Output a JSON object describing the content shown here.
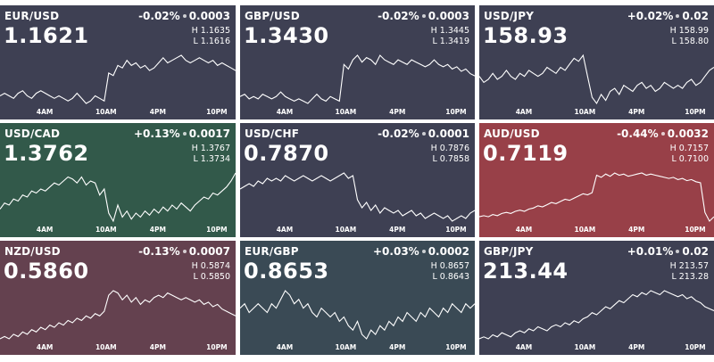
{
  "colors": {
    "neutral": "#3e4053",
    "green": "#32594a",
    "red": "#984048",
    "mauve": "#64414f",
    "teal": "#3a4a55",
    "line": "#ffffff"
  },
  "axis_labels": [
    "4AM",
    "10AM",
    "4PM",
    "10PM"
  ],
  "tiles": [
    {
      "pair": "EUR/USD",
      "change_pct": "-0.02%",
      "change_abs": "0.0003",
      "price": "1.1621",
      "high_label": "H",
      "high": "1.1635",
      "low_label": "L",
      "low": "1.1616",
      "color": "neutral",
      "chart_data": {
        "type": "line",
        "x_ticks": [
          "4AM",
          "10AM",
          "4PM",
          "10PM"
        ],
        "values": [
          1.1619,
          1.162,
          1.1619,
          1.1618,
          1.162,
          1.1621,
          1.1619,
          1.1618,
          1.162,
          1.1621,
          1.162,
          1.1619,
          1.1618,
          1.1619,
          1.1618,
          1.1617,
          1.1618,
          1.162,
          1.1618,
          1.1616,
          1.1617,
          1.1619,
          1.1618,
          1.1617,
          1.1628,
          1.1627,
          1.1631,
          1.163,
          1.1633,
          1.1631,
          1.1632,
          1.163,
          1.1631,
          1.1629,
          1.163,
          1.1632,
          1.1634,
          1.1632,
          1.1633,
          1.1634,
          1.1635,
          1.1633,
          1.1632,
          1.1633,
          1.1634,
          1.1633,
          1.1632,
          1.1633,
          1.1631,
          1.1632,
          1.1631,
          1.163,
          1.1629
        ]
      }
    },
    {
      "pair": "GBP/USD",
      "change_pct": "-0.02%",
      "change_abs": "0.0003",
      "price": "1.3430",
      "high_label": "H",
      "high": "1.3445",
      "low_label": "L",
      "low": "1.3419",
      "color": "neutral",
      "chart_data": {
        "type": "line",
        "x_ticks": [
          "4AM",
          "10AM",
          "4PM",
          "10PM"
        ],
        "values": [
          1.3422,
          1.3423,
          1.3421,
          1.3422,
          1.3421,
          1.3423,
          1.3422,
          1.3421,
          1.3422,
          1.3424,
          1.3422,
          1.3421,
          1.342,
          1.3421,
          1.342,
          1.3419,
          1.3421,
          1.3423,
          1.3421,
          1.342,
          1.3422,
          1.3421,
          1.342,
          1.3436,
          1.3434,
          1.3438,
          1.344,
          1.3437,
          1.3439,
          1.3438,
          1.3436,
          1.344,
          1.3438,
          1.3437,
          1.3436,
          1.3438,
          1.3437,
          1.3436,
          1.3438,
          1.3437,
          1.3436,
          1.3435,
          1.3436,
          1.3438,
          1.3436,
          1.3435,
          1.3436,
          1.3434,
          1.3435,
          1.3433,
          1.3434,
          1.3432,
          1.3431
        ]
      }
    },
    {
      "pair": "USD/JPY",
      "change_pct": "+0.02%",
      "change_abs": "0.02",
      "price": "158.93",
      "high_label": "H",
      "high": "158.99",
      "low_label": "L",
      "low": "158.80",
      "color": "neutral",
      "chart_data": {
        "type": "line",
        "x_ticks": [
          "4AM",
          "10AM",
          "4PM",
          "10PM"
        ],
        "values": [
          158.9,
          158.88,
          158.89,
          158.91,
          158.89,
          158.9,
          158.92,
          158.9,
          158.89,
          158.91,
          158.9,
          158.92,
          158.91,
          158.9,
          158.91,
          158.93,
          158.92,
          158.91,
          158.93,
          158.92,
          158.94,
          158.96,
          158.95,
          158.97,
          158.9,
          158.83,
          158.81,
          158.84,
          158.82,
          158.85,
          158.86,
          158.84,
          158.87,
          158.86,
          158.85,
          158.87,
          158.88,
          158.86,
          158.87,
          158.85,
          158.86,
          158.88,
          158.87,
          158.86,
          158.87,
          158.86,
          158.88,
          158.89,
          158.87,
          158.88,
          158.9,
          158.92,
          158.93
        ]
      }
    },
    {
      "pair": "USD/CAD",
      "change_pct": "+0.13%",
      "change_abs": "0.0017",
      "price": "1.3762",
      "high_label": "H",
      "high": "1.3767",
      "low_label": "L",
      "low": "1.3734",
      "color": "green",
      "chart_data": {
        "type": "line",
        "x_ticks": [
          "4AM",
          "10AM",
          "4PM",
          "10PM"
        ],
        "values": [
          1.3742,
          1.3745,
          1.3744,
          1.3747,
          1.3746,
          1.3749,
          1.3748,
          1.3751,
          1.375,
          1.3752,
          1.3751,
          1.3753,
          1.3755,
          1.3754,
          1.3756,
          1.3758,
          1.3757,
          1.3755,
          1.3758,
          1.3754,
          1.3756,
          1.3755,
          1.3749,
          1.3752,
          1.374,
          1.3736,
          1.3744,
          1.3738,
          1.3741,
          1.3737,
          1.374,
          1.3738,
          1.3741,
          1.3739,
          1.3742,
          1.374,
          1.3743,
          1.3741,
          1.3744,
          1.3742,
          1.3745,
          1.3743,
          1.3741,
          1.3744,
          1.3746,
          1.3748,
          1.3747,
          1.375,
          1.3749,
          1.3751,
          1.3753,
          1.3756,
          1.376
        ]
      }
    },
    {
      "pair": "USD/CHF",
      "change_pct": "-0.02%",
      "change_abs": "0.0001",
      "price": "0.7870",
      "high_label": "H",
      "high": "0.7876",
      "low_label": "L",
      "low": "0.7858",
      "color": "neutral",
      "chart_data": {
        "type": "line",
        "x_ticks": [
          "4AM",
          "10AM",
          "4PM",
          "10PM"
        ],
        "values": [
          0.787,
          0.7871,
          0.7872,
          0.7871,
          0.7873,
          0.7872,
          0.7874,
          0.7873,
          0.7874,
          0.7873,
          0.7875,
          0.7874,
          0.7873,
          0.7874,
          0.7875,
          0.7874,
          0.7873,
          0.7874,
          0.7875,
          0.7874,
          0.7873,
          0.7874,
          0.7875,
          0.7876,
          0.7874,
          0.7875,
          0.7866,
          0.7863,
          0.7865,
          0.7862,
          0.7864,
          0.7861,
          0.7863,
          0.7862,
          0.7861,
          0.7862,
          0.786,
          0.7861,
          0.7862,
          0.786,
          0.7861,
          0.7859,
          0.786,
          0.7861,
          0.786,
          0.7859,
          0.786,
          0.7858,
          0.7859,
          0.786,
          0.7859,
          0.7861,
          0.7862
        ]
      }
    },
    {
      "pair": "AUD/USD",
      "change_pct": "-0.44%",
      "change_abs": "0.0032",
      "price": "0.7119",
      "high_label": "H",
      "high": "0.7157",
      "low_label": "L",
      "low": "0.7100",
      "color": "red",
      "chart_data": {
        "type": "line",
        "x_ticks": [
          "4AM",
          "10AM",
          "4PM",
          "10PM"
        ],
        "values": [
          0.7108,
          0.7109,
          0.7108,
          0.711,
          0.7109,
          0.7111,
          0.7112,
          0.7111,
          0.7113,
          0.7114,
          0.7113,
          0.7115,
          0.7116,
          0.7118,
          0.7117,
          0.7119,
          0.7121,
          0.712,
          0.7122,
          0.7124,
          0.7123,
          0.7125,
          0.7127,
          0.7129,
          0.7128,
          0.713,
          0.7146,
          0.7144,
          0.7147,
          0.7145,
          0.7148,
          0.7146,
          0.7147,
          0.7145,
          0.7146,
          0.7147,
          0.7148,
          0.7146,
          0.7147,
          0.7146,
          0.7145,
          0.7144,
          0.7143,
          0.7144,
          0.7142,
          0.7143,
          0.7141,
          0.7142,
          0.714,
          0.7139,
          0.7112,
          0.7104,
          0.7108
        ]
      }
    },
    {
      "pair": "NZD/USD",
      "change_pct": "-0.13%",
      "change_abs": "0.0007",
      "price": "0.5860",
      "high_label": "H",
      "high": "0.5874",
      "low_label": "L",
      "low": "0.5850",
      "color": "mauve",
      "chart_data": {
        "type": "line",
        "x_ticks": [
          "4AM",
          "10AM",
          "4PM",
          "10PM"
        ],
        "values": [
          0.5851,
          0.5852,
          0.5851,
          0.5853,
          0.5852,
          0.5854,
          0.5853,
          0.5855,
          0.5854,
          0.5856,
          0.5855,
          0.5857,
          0.5856,
          0.5858,
          0.5857,
          0.5859,
          0.5858,
          0.586,
          0.5859,
          0.5861,
          0.586,
          0.5862,
          0.5861,
          0.5863,
          0.587,
          0.5872,
          0.5871,
          0.5868,
          0.587,
          0.5867,
          0.5869,
          0.5866,
          0.5868,
          0.5867,
          0.5869,
          0.587,
          0.5869,
          0.5871,
          0.587,
          0.5869,
          0.5868,
          0.5869,
          0.5868,
          0.5867,
          0.5868,
          0.5866,
          0.5867,
          0.5865,
          0.5866,
          0.5864,
          0.5863,
          0.5862,
          0.5861
        ]
      }
    },
    {
      "pair": "EUR/GBP",
      "change_pct": "+0.03%",
      "change_abs": "0.0002",
      "price": "0.8653",
      "high_label": "H",
      "high": "0.8657",
      "low_label": "L",
      "low": "0.8643",
      "color": "teal",
      "chart_data": {
        "type": "line",
        "x_ticks": [
          "4AM",
          "10AM",
          "4PM",
          "10PM"
        ],
        "values": [
          0.8652,
          0.8653,
          0.8651,
          0.8652,
          0.8653,
          0.8652,
          0.8651,
          0.8653,
          0.8652,
          0.8654,
          0.8656,
          0.8655,
          0.8653,
          0.8654,
          0.8652,
          0.8653,
          0.8651,
          0.865,
          0.8652,
          0.8651,
          0.865,
          0.8651,
          0.8649,
          0.865,
          0.8648,
          0.8647,
          0.8649,
          0.8646,
          0.8645,
          0.8647,
          0.8646,
          0.8648,
          0.8647,
          0.8649,
          0.8648,
          0.865,
          0.8649,
          0.8651,
          0.865,
          0.8649,
          0.8651,
          0.865,
          0.8652,
          0.8651,
          0.865,
          0.8652,
          0.8651,
          0.8653,
          0.8652,
          0.8651,
          0.8653,
          0.8652,
          0.8653
        ]
      }
    },
    {
      "pair": "GBP/JPY",
      "change_pct": "+0.01%",
      "change_abs": "0.02",
      "price": "213.44",
      "high_label": "H",
      "high": "213.57",
      "low_label": "L",
      "low": "213.28",
      "color": "neutral",
      "chart_data": {
        "type": "line",
        "x_ticks": [
          "4AM",
          "10AM",
          "4PM",
          "10PM"
        ],
        "values": [
          213.3,
          213.31,
          213.3,
          213.32,
          213.31,
          213.33,
          213.32,
          213.31,
          213.33,
          213.34,
          213.33,
          213.35,
          213.34,
          213.36,
          213.35,
          213.34,
          213.36,
          213.37,
          213.36,
          213.38,
          213.37,
          213.39,
          213.38,
          213.4,
          213.41,
          213.43,
          213.42,
          213.44,
          213.46,
          213.45,
          213.47,
          213.49,
          213.48,
          213.5,
          213.52,
          213.51,
          213.53,
          213.52,
          213.54,
          213.53,
          213.52,
          213.54,
          213.53,
          213.52,
          213.51,
          213.52,
          213.5,
          213.51,
          213.49,
          213.48,
          213.46,
          213.45,
          213.44
        ]
      }
    }
  ]
}
